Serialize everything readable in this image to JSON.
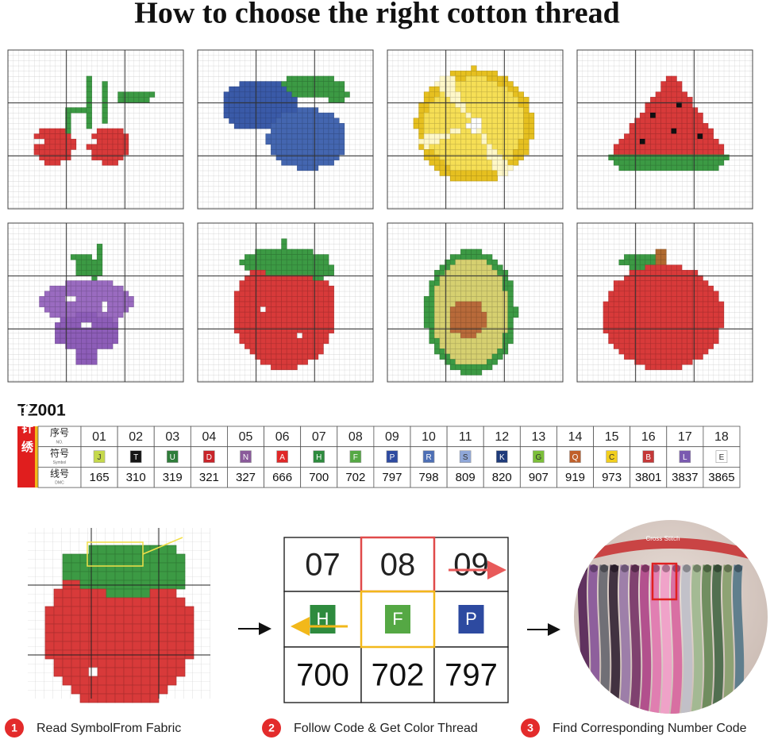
{
  "title": "How to choose the right cotton thread",
  "color_table": {
    "code": "TZ001",
    "side_label": "全针绣",
    "row_headers": [
      {
        "label": "序号",
        "sub": "NO."
      },
      {
        "label": "符号",
        "sub": "Symbol"
      },
      {
        "label": "线号",
        "sub": "DMC"
      }
    ],
    "columns": [
      {
        "no": "01",
        "symbol": "J",
        "dmc": "165",
        "color": "#c5d94b"
      },
      {
        "no": "02",
        "symbol": "T",
        "dmc": "310",
        "color": "#151515"
      },
      {
        "no": "03",
        "symbol": "U",
        "dmc": "319",
        "color": "#2f7d3a"
      },
      {
        "no": "04",
        "symbol": "D",
        "dmc": "321",
        "color": "#c8242a"
      },
      {
        "no": "05",
        "symbol": "N",
        "dmc": "327",
        "color": "#8a5a9a"
      },
      {
        "no": "06",
        "symbol": "A",
        "dmc": "666",
        "color": "#e02828"
      },
      {
        "no": "07",
        "symbol": "H",
        "dmc": "700",
        "color": "#2e8b3e"
      },
      {
        "no": "08",
        "symbol": "F",
        "dmc": "702",
        "color": "#55a844"
      },
      {
        "no": "09",
        "symbol": "P",
        "dmc": "797",
        "color": "#2d4aa0"
      },
      {
        "no": "10",
        "symbol": "R",
        "dmc": "798",
        "color": "#4d6fb5"
      },
      {
        "no": "11",
        "symbol": "S",
        "dmc": "809",
        "color": "#8fa7d8"
      },
      {
        "no": "12",
        "symbol": "K",
        "dmc": "820",
        "color": "#1f3b7a"
      },
      {
        "no": "13",
        "symbol": "G",
        "dmc": "907",
        "color": "#7cbf3a"
      },
      {
        "no": "14",
        "symbol": "Q",
        "dmc": "919",
        "color": "#c0602a"
      },
      {
        "no": "15",
        "symbol": "C",
        "dmc": "973",
        "color": "#f2cf1e"
      },
      {
        "no": "16",
        "symbol": "B",
        "dmc": "3801",
        "color": "#c43838"
      },
      {
        "no": "17",
        "symbol": "L",
        "dmc": "3837",
        "color": "#7a5ab0"
      },
      {
        "no": "18",
        "symbol": "E",
        "dmc": "3865",
        "color": "#ffffff"
      }
    ]
  },
  "zoom_table": {
    "numbers": [
      "07",
      "08",
      "09"
    ],
    "symbols": [
      {
        "symbol": "H",
        "color": "#2e8b3e"
      },
      {
        "symbol": "F",
        "color": "#55a844"
      },
      {
        "symbol": "P",
        "color": "#2d4aa0"
      }
    ],
    "dmc": [
      "700",
      "702",
      "797"
    ]
  },
  "photo_label": "Cross Stitch",
  "steps": [
    {
      "number": "1",
      "text": "Read SymbolFrom Fabric"
    },
    {
      "number": "2",
      "text": "Follow Code & Get Color Thread"
    },
    {
      "number": "3",
      "text": "Find Corresponding Number Code"
    }
  ]
}
